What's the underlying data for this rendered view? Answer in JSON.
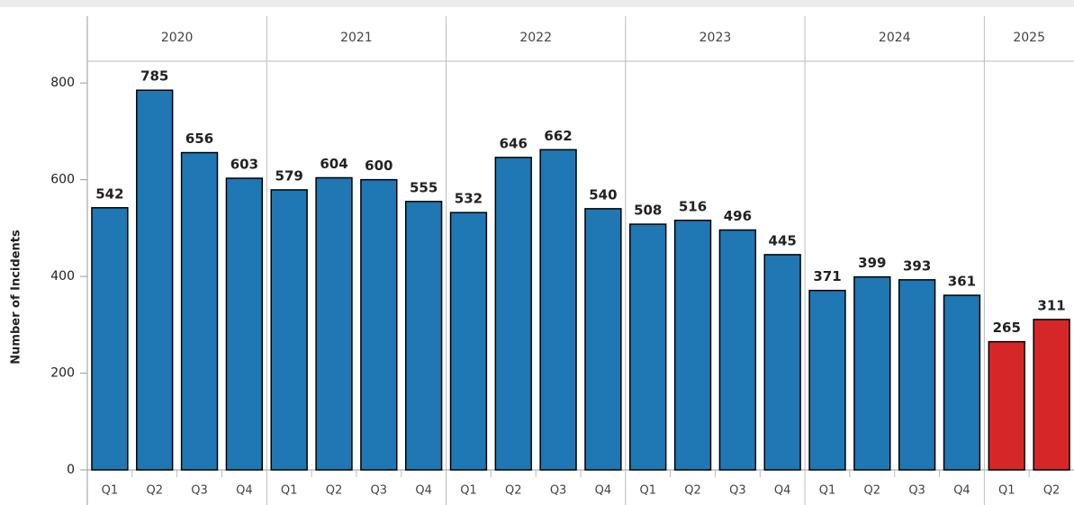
{
  "chart_data": {
    "type": "bar",
    "y_label": "Number of Incidents",
    "groups": [
      {
        "label": "2020",
        "quarters": [
          "Q1",
          "Q2",
          "Q3",
          "Q4"
        ]
      },
      {
        "label": "2021",
        "quarters": [
          "Q1",
          "Q2",
          "Q3",
          "Q4"
        ]
      },
      {
        "label": "2022",
        "quarters": [
          "Q1",
          "Q2",
          "Q3",
          "Q4"
        ]
      },
      {
        "label": "2023",
        "quarters": [
          "Q1",
          "Q2",
          "Q3",
          "Q4"
        ]
      },
      {
        "label": "2024",
        "quarters": [
          "Q1",
          "Q2",
          "Q3",
          "Q4"
        ]
      },
      {
        "label": "2025",
        "quarters": [
          "Q1",
          "Q2"
        ]
      }
    ],
    "values": [
      542,
      785,
      656,
      603,
      579,
      604,
      600,
      555,
      532,
      646,
      662,
      540,
      508,
      516,
      496,
      445,
      371,
      399,
      393,
      361,
      265,
      311
    ],
    "colors": [
      "#1f77b4",
      "#1f77b4",
      "#1f77b4",
      "#1f77b4",
      "#1f77b4",
      "#1f77b4",
      "#1f77b4",
      "#1f77b4",
      "#1f77b4",
      "#1f77b4",
      "#1f77b4",
      "#1f77b4",
      "#1f77b4",
      "#1f77b4",
      "#1f77b4",
      "#1f77b4",
      "#1f77b4",
      "#1f77b4",
      "#1f77b4",
      "#1f77b4",
      "#d62728",
      "#d62728"
    ],
    "ylim": [
      0,
      845
    ],
    "yticks": [
      0,
      200,
      400,
      600,
      800
    ],
    "grid": false
  }
}
